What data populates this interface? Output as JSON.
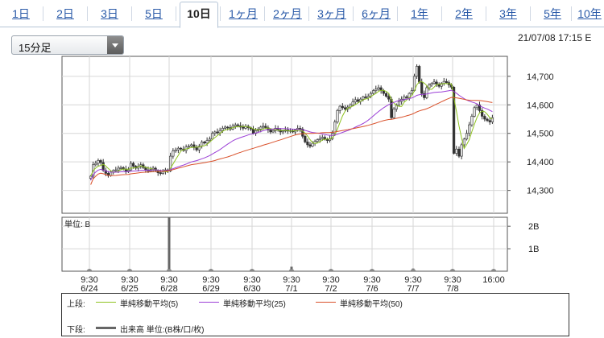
{
  "tabs": [
    {
      "label": "1日",
      "active": false
    },
    {
      "label": "2日",
      "active": false
    },
    {
      "label": "3日",
      "active": false
    },
    {
      "label": "5日",
      "active": false
    },
    {
      "label": "10日",
      "active": true
    },
    {
      "label": "1ヶ月",
      "active": false
    },
    {
      "label": "2ヶ月",
      "active": false
    },
    {
      "label": "3ヶ月",
      "active": false
    },
    {
      "label": "6ヶ月",
      "active": false
    },
    {
      "label": "1年",
      "active": false
    },
    {
      "label": "2年",
      "active": false
    },
    {
      "label": "3年",
      "active": false
    },
    {
      "label": "5年",
      "active": false
    },
    {
      "label": "10年",
      "active": false
    }
  ],
  "interval_select": {
    "value": "15分足"
  },
  "timestamp": "21/07/08 17:15 E",
  "colors": {
    "up_candle": "#e8e8e8",
    "down_candle": "#333333",
    "ma5": "#8ec21f",
    "ma25": "#9b3fd6",
    "ma50": "#d9502a",
    "volume": "#666666",
    "grid": "#d6d6d6",
    "tab_link": "#2a5aa8"
  },
  "chart_data": [
    {
      "type": "candlestick",
      "name": "price",
      "ylim": [
        14220,
        14770
      ],
      "yticks": [
        14300,
        14400,
        14500,
        14600,
        14700
      ],
      "ytick_labels": [
        "14,300",
        "14,400",
        "14,500",
        "14,600",
        "14,700"
      ],
      "x_labels": [
        {
          "time": "9:30",
          "date": "6/24"
        },
        {
          "time": "9:30",
          "date": "6/25"
        },
        {
          "time": "9:30",
          "date": "6/28"
        },
        {
          "time": "9:30",
          "date": "6/29"
        },
        {
          "time": "9:30",
          "date": "6/30"
        },
        {
          "time": "9:30",
          "date": "7/1"
        },
        {
          "time": "9:30",
          "date": "7/2"
        },
        {
          "time": "9:30",
          "date": "7/6"
        },
        {
          "time": "9:30",
          "date": "7/7"
        },
        {
          "time": "9:30",
          "date": "7/8"
        },
        {
          "time": "16:00",
          "date": ""
        }
      ],
      "close_series": [
        14350,
        14390,
        14395,
        14405,
        14398,
        14370,
        14360,
        14352,
        14365,
        14370,
        14372,
        14378,
        14380,
        14375,
        14368,
        14372,
        14395,
        14385,
        14378,
        14384,
        14390,
        14380,
        14372,
        14368,
        14373,
        14378,
        14370,
        14362,
        14360,
        14366,
        14372,
        14368,
        14420,
        14438,
        14442,
        14448,
        14445,
        14440,
        14452,
        14455,
        14460,
        14450,
        14442,
        14455,
        14470,
        14466,
        14475,
        14480,
        14500,
        14505,
        14502,
        14510,
        14518,
        14522,
        14520,
        14515,
        14525,
        14530,
        14527,
        14522,
        14518,
        14525,
        14520,
        14515,
        14500,
        14510,
        14515,
        14522,
        14525,
        14520,
        14512,
        14505,
        14510,
        14518,
        14512,
        14505,
        14508,
        14512,
        14508,
        14510,
        14505,
        14512,
        14518,
        14515,
        14490,
        14470,
        14460,
        14455,
        14465,
        14472,
        14478,
        14482,
        14486,
        14480,
        14475,
        14480,
        14500,
        14540,
        14580,
        14595,
        14590,
        14585,
        14592,
        14600,
        14610,
        14618,
        14612,
        14620,
        14628,
        14625,
        14630,
        14640,
        14650,
        14655,
        14660,
        14650,
        14640,
        14630,
        14620,
        14555,
        14585,
        14600,
        14612,
        14620,
        14628,
        14625,
        14640,
        14650,
        14700,
        14735,
        14680,
        14640,
        14625,
        14660,
        14670,
        14675,
        14680,
        14672,
        14665,
        14675,
        14682,
        14678,
        14670,
        14662,
        14430,
        14445,
        14420,
        14460,
        14480,
        14500,
        14530,
        14560,
        14590,
        14600,
        14580,
        14560,
        14550,
        14545,
        14540,
        14555
      ],
      "series": [
        {
          "name": "単純移動平均(5)",
          "color_key": "ma5",
          "window": 5
        },
        {
          "name": "単純移動平均(25)",
          "color_key": "ma25",
          "window": 25
        },
        {
          "name": "単純移動平均(50)",
          "color_key": "ma50",
          "window": 50
        }
      ]
    },
    {
      "type": "bar",
      "name": "volume",
      "unit_label": "単位: B",
      "ylim": [
        0,
        2.4
      ],
      "yticks": [
        1,
        2
      ],
      "ytick_labels": [
        "1B",
        "2B"
      ],
      "spikes": [
        {
          "session": "6/24",
          "value": 0.02
        },
        {
          "session": "6/25",
          "value": 0.03
        },
        {
          "session": "6/28",
          "value": 2.45
        },
        {
          "session": "6/29",
          "value": 0.04
        },
        {
          "session": "6/30",
          "value": 0.05
        },
        {
          "session": "7/1",
          "value": 0.2
        },
        {
          "session": "7/2",
          "value": 0.05
        },
        {
          "session": "7/6",
          "value": 0.05
        },
        {
          "session": "7/7",
          "value": 0.12
        },
        {
          "session": "7/8",
          "value": 0.05
        },
        {
          "session": "16:00",
          "value": 0.05
        }
      ]
    }
  ],
  "legend": {
    "upper_label": "上段:",
    "lower_label": "下段:",
    "ma5_label": "単純移動平均(5)",
    "ma25_label": "単純移動平均(25)",
    "ma50_label": "単純移動平均(50)",
    "volume_label": "出来高 単位:(B株/口/枚)"
  }
}
